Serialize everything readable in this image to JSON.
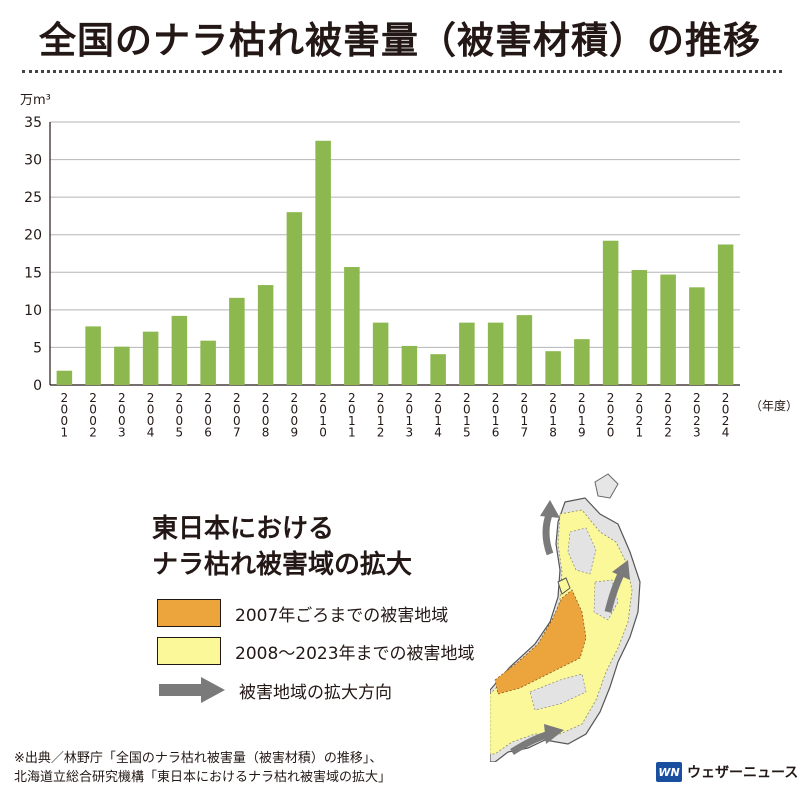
{
  "title": "全国のナラ枯れ被害量（被害材積）の推移",
  "chart_data": {
    "type": "bar",
    "y_unit": "万m³",
    "x_unit": "（年度）",
    "ylim": [
      0,
      35
    ],
    "yticks": [
      0,
      5,
      10,
      15,
      20,
      25,
      30,
      35
    ],
    "grid": true,
    "bar_color": "#8cb84f",
    "categories": [
      "2001",
      "2002",
      "2003",
      "2004",
      "2005",
      "2006",
      "2007",
      "2008",
      "2009",
      "2010",
      "2011",
      "2012",
      "2013",
      "2014",
      "2015",
      "2016",
      "2017",
      "2018",
      "2019",
      "2020",
      "2021",
      "2022",
      "2023",
      "2024"
    ],
    "values": [
      1.9,
      7.8,
      5.1,
      7.1,
      9.2,
      5.9,
      11.6,
      13.3,
      23.0,
      32.5,
      15.7,
      8.3,
      5.2,
      4.1,
      8.3,
      8.3,
      9.3,
      4.5,
      6.1,
      19.2,
      15.3,
      14.7,
      13.0,
      18.7
    ]
  },
  "map_section": {
    "title_line1": "東日本における",
    "title_line2": "ナラ枯れ被害域の拡大",
    "legend": [
      {
        "label": "2007年ごろまでの被害地域",
        "color": "#eca43c"
      },
      {
        "label": "2008〜2023年までの被害地域",
        "color": "#fbf89a"
      },
      {
        "label": "被害地域の拡大方向",
        "color": "#7a7a7a"
      }
    ]
  },
  "source_note": {
    "line1": "※出典／林野庁「全国のナラ枯れ被害量（被害材積）の推移」、",
    "line2": "北海道立総合研究機構「東日本におけるナラ枯れ被害域の拡大」"
  },
  "brand": {
    "logo_text": "WN",
    "name": "ウェザーニュース",
    "color": "#1a4fa0"
  }
}
